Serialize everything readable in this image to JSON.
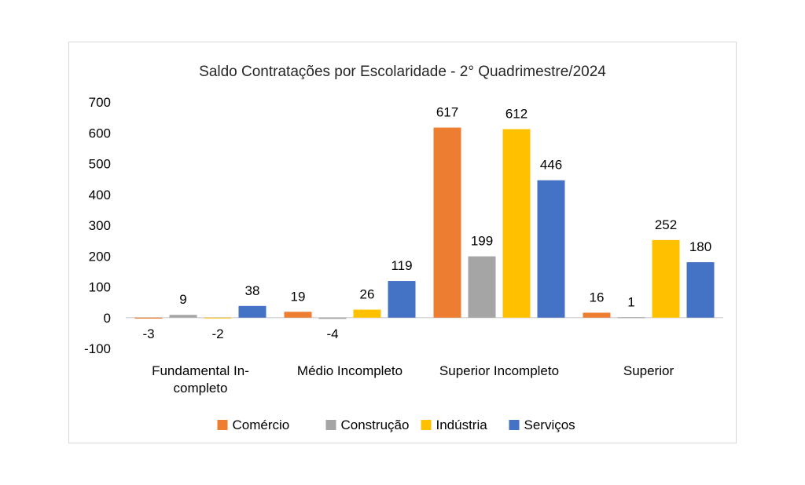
{
  "chart_data": {
    "type": "bar",
    "title": "Saldo Contratações por Escolaridade - 2° Quadrimestre/2024",
    "xlabel": "",
    "ylabel": "",
    "ylim": [
      -100,
      700
    ],
    "yticks": [
      "700",
      "600",
      "500",
      "400",
      "300",
      "200",
      "100",
      "0",
      "-100"
    ],
    "ytick_values": [
      700,
      600,
      500,
      400,
      300,
      200,
      100,
      0,
      -100
    ],
    "categories": [
      [
        "Fundamental In-",
        "completo"
      ],
      [
        "Médio Incompleto"
      ],
      [
        "Superior Incompleto"
      ],
      [
        "Superior"
      ]
    ],
    "series": [
      {
        "name": "Comércio",
        "color": "#ED7D31",
        "values": [
          -3,
          19,
          617,
          16
        ]
      },
      {
        "name": "Construção",
        "color": "#A5A5A5",
        "values": [
          9,
          -4,
          199,
          1
        ]
      },
      {
        "name": "Indústria",
        "color": "#FFC000",
        "values": [
          -2,
          26,
          612,
          252
        ]
      },
      {
        "name": "Serviços",
        "color": "#4472C4",
        "values": [
          38,
          119,
          446,
          180
        ]
      }
    ],
    "grid": false,
    "legend_position": "bottom"
  }
}
